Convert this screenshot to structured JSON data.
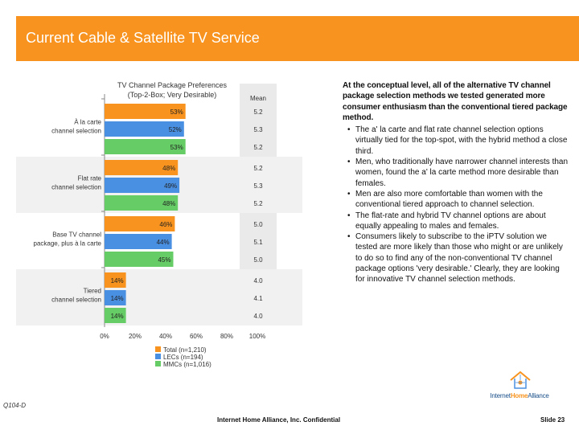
{
  "header": {
    "title": "Current Cable & Satellite TV Service"
  },
  "chart_data": {
    "type": "bar",
    "orientation": "horizontal",
    "title": "TV Channel Package Preferences (Top-2-Box; Very Desirable)",
    "title_lines": [
      "TV Channel Package Preferences",
      "(Top-2-Box; Very Desirable)"
    ],
    "mean_label": "Mean",
    "categories": [
      {
        "label": [
          "À la carte",
          "channel selection"
        ]
      },
      {
        "label": [
          "Flat rate",
          "channel selection"
        ]
      },
      {
        "label": [
          "Base TV channel",
          "package, plus à la carte"
        ]
      },
      {
        "label": [
          "Tiered",
          "channel selection"
        ]
      }
    ],
    "series": [
      {
        "name": "Total (n=1,210)",
        "color": "#f7931e",
        "values": [
          53,
          48,
          46,
          14
        ],
        "labels": [
          "53%",
          "48%",
          "46%",
          "14%"
        ],
        "means": [
          "5.2",
          "5.2",
          "5.0",
          "4.0"
        ]
      },
      {
        "name": "LECs (n=194)",
        "color": "#4a90e2",
        "values": [
          52,
          49,
          44,
          14
        ],
        "labels": [
          "52%",
          "49%",
          "44%",
          "14%"
        ],
        "means": [
          "5.3",
          "5.3",
          "5.1",
          "4.1"
        ]
      },
      {
        "name": "MMCs (n=1,016)",
        "color": "#66cc66",
        "values": [
          53,
          48,
          45,
          14
        ],
        "labels": [
          "53%",
          "48%",
          "45%",
          "14%"
        ],
        "means": [
          "5.2",
          "5.2",
          "5.0",
          "4.0"
        ]
      }
    ],
    "xlim": [
      0,
      100
    ],
    "xticks": [
      "0%",
      "20%",
      "40%",
      "60%",
      "80%",
      "100%"
    ]
  },
  "bullets": {
    "lead": "At the conceptual level, all of the alternative TV channel package selection methods we tested generated more consumer enthusiasm than the conventional tiered package method.",
    "items": [
      "The a' la carte and flat rate channel selection options virtually tied for the top-spot, with the hybrid method a close third.",
      "Men, who traditionally have narrower channel interests than women, found the a' la carte method more desirable than females.",
      "Men are also more comfortable than women with the conventional tiered approach to channel selection.",
      "The flat-rate and hybrid TV channel options are about equally appealing to males and females.",
      "Consumers likely to subscribe to the iPTV solution we tested are more likely than those who might or are unlikely to do so to find any of the non-conventional TV channel package options 'very desirable.' Clearly, they are looking for innovative TV channel selection methods."
    ]
  },
  "footer": {
    "question_code": "Q104-D",
    "confidential": "Internet Home Alliance, Inc. Confidential",
    "slide": "Slide 23",
    "logo_text_1": "Internet",
    "logo_text_2": "Home",
    "logo_text_3": "Alliance"
  }
}
